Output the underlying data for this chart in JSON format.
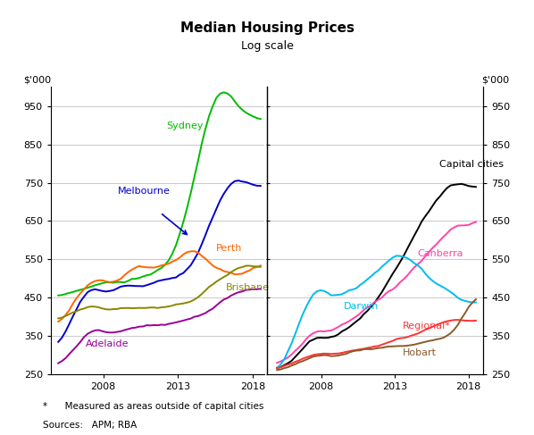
{
  "title": "Median Housing Prices",
  "subtitle": "Log scale",
  "ylabel": "$’000",
  "footnote1": "*      Measured as areas outside of capital cities",
  "footnote2": "Sources:   APM; RBA",
  "ylim": [
    250,
    1000
  ],
  "yticks": [
    250,
    350,
    450,
    550,
    650,
    750,
    850,
    950
  ],
  "background_color": "#FFFFFF",
  "grid_color": "#C0C0C0",
  "left_series_colors": {
    "Sydney": "#00BB00",
    "Melbourne": "#0000CC",
    "Perth": "#FF6600",
    "Brisbane": "#888800",
    "Adelaide": "#990099"
  },
  "right_series_colors": {
    "Capital cities": "#000000",
    "Canberra": "#FF44AA",
    "Darwin": "#00BBEE",
    "Regional": "#FF3333",
    "Hobart": "#8B5A2B"
  }
}
